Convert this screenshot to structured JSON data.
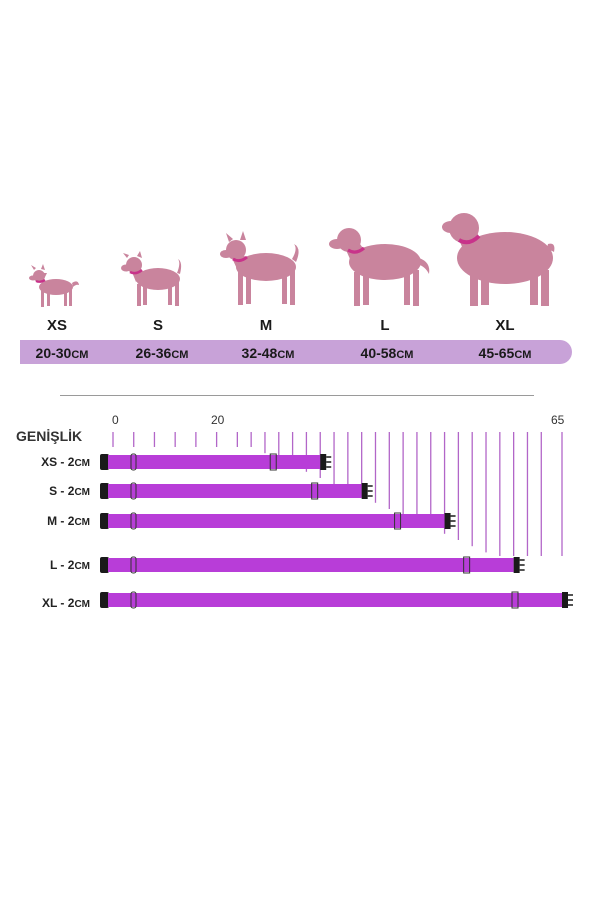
{
  "colors": {
    "dog": "#c9849d",
    "collar_band": "#b83dd8",
    "collar_on_dog": "#c8338a",
    "range_band": "#c8a2d8",
    "ruler": "#b266c8",
    "buckle": "#1a1a1a"
  },
  "sizes": [
    {
      "label": "XS",
      "range": "20-30",
      "unit": "CM"
    },
    {
      "label": "S",
      "range": "26-36",
      "unit": "CM"
    },
    {
      "label": "M",
      "range": "32-48",
      "unit": "CM"
    },
    {
      "label": "L",
      "range": "40-58",
      "unit": "CM"
    },
    {
      "label": "XL",
      "range": "45-65",
      "unit": "CM"
    }
  ],
  "width_chart": {
    "title": "GENİŞLİK",
    "tick_labels": [
      "0",
      "20",
      "65"
    ],
    "collars": [
      {
        "label": "XS - 2",
        "unit": "CM",
        "max": 30
      },
      {
        "label": "S -  2",
        "unit": "CM",
        "max": 36
      },
      {
        "label": "M - 2",
        "unit": "CM",
        "max": 48
      },
      {
        "label": "L - 2",
        "unit": "CM",
        "max": 58
      },
      {
        "label": "XL - 2",
        "unit": "CM",
        "max": 65
      }
    ]
  }
}
